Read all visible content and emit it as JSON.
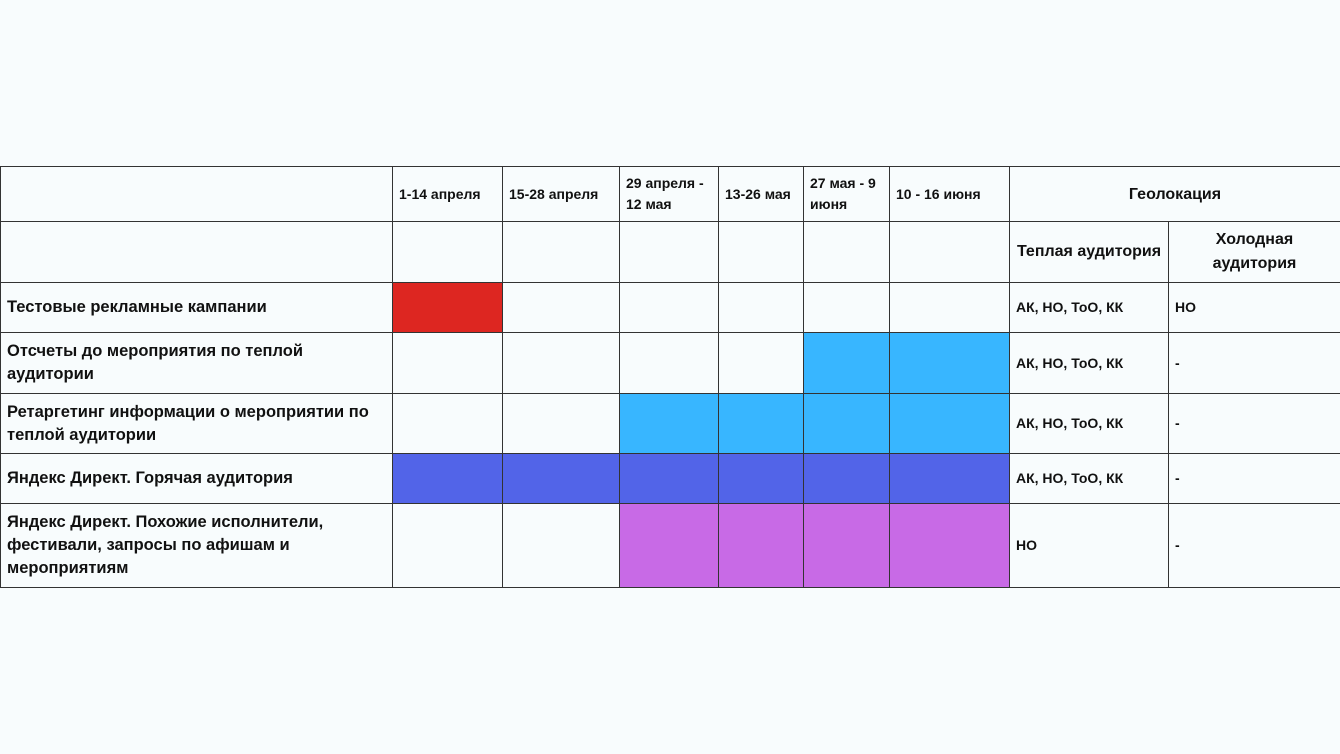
{
  "periods": [
    "1-14 апреля",
    "15-28 апреля",
    "29 апреля - 12 мая",
    "13-26 мая",
    "27 мая - 9 июня",
    "10 - 16 июня"
  ],
  "geo_header": "Геолокация",
  "geo_sub": [
    "Теплая аудитория",
    "Холодная аудитория"
  ],
  "rows": [
    {
      "label": "Тестовые рекламные кампании",
      "active": [
        0
      ],
      "color": "#dd2621",
      "warm": "АК, НО, ТоО, КК",
      "cold": "НО"
    },
    {
      "label": "Отсчеты до мероприятия по теплой аудитории",
      "active": [
        4,
        5
      ],
      "color": "#38b6ff",
      "warm": "АК, НО, ТоО, КК",
      "cold": "-"
    },
    {
      "label": "Ретаргетинг информации о мероприятии по теплой аудитории",
      "active": [
        2,
        3,
        4,
        5
      ],
      "color": "#38b6ff",
      "warm": "АК, НО, ТоО, КК",
      "cold": "-"
    },
    {
      "label": "Яндекс Директ. Горячая аудитория",
      "active": [
        0,
        1,
        2,
        3,
        4,
        5
      ],
      "color": "#5264e8",
      "warm": "АК, НО, ТоО, КК",
      "cold": "-"
    },
    {
      "label": "Яндекс Директ. Похожие исполнители, фестивали, запросы по афишам и мероприятиям",
      "active": [
        2,
        3,
        4,
        5
      ],
      "color": "#c86ae6",
      "warm": "НО",
      "cold": "-"
    }
  ]
}
